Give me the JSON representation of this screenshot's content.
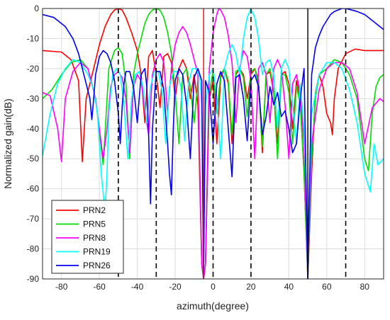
{
  "chart_data": {
    "type": "line",
    "title": "",
    "xlabel": "azimuth(degree)",
    "ylabel": "Normalized gain(dB)",
    "xlim": [
      -90,
      90
    ],
    "ylim": [
      -90,
      0
    ],
    "xticks": [
      -80,
      -60,
      -40,
      -20,
      0,
      20,
      40,
      60,
      80
    ],
    "yticks": [
      0,
      -10,
      -20,
      -30,
      -40,
      -50,
      -60,
      -70,
      -80,
      -90
    ],
    "xtick_labels": [
      "-80",
      "-60",
      "-40",
      "-20",
      "0",
      "20",
      "40",
      "60",
      "80"
    ],
    "ytick_labels": [
      "0",
      "-10",
      "-20",
      "-30",
      "-40",
      "-50",
      "-60",
      "-70",
      "-80",
      "-90"
    ],
    "grid": true,
    "legend_position": "bottom-left",
    "reference_lines": {
      "dashed_x": [
        -50,
        -30,
        0,
        20,
        70
      ],
      "solid_red_x": -5,
      "solid_black_x": 50
    },
    "series": [
      {
        "name": "PRN2",
        "color": "#ff0000",
        "main_beam_deg": -50,
        "x": [
          -90,
          -80,
          -75,
          -71,
          -69,
          -67,
          -63,
          -60,
          -57,
          -54,
          -52,
          -50,
          -48,
          -46,
          -43,
          -40,
          -38,
          -36,
          -34,
          -32,
          -30,
          -28,
          -26,
          -24,
          -22,
          -20,
          -18,
          -16,
          -14,
          -12,
          -10,
          -8,
          -6,
          -5,
          -4,
          -2,
          0,
          2,
          4,
          6,
          8,
          10,
          12,
          14,
          16,
          18,
          20,
          22,
          24,
          26,
          28,
          30,
          32,
          34,
          36,
          38,
          40,
          42,
          44,
          46,
          48,
          50,
          52,
          54,
          56,
          58,
          60,
          62,
          63,
          64,
          66,
          70,
          75,
          80,
          85,
          90
        ],
        "y": [
          -14,
          -14.5,
          -17,
          -24,
          -51,
          -30,
          -20,
          -12,
          -6,
          -2,
          -0.5,
          0,
          -0.5,
          -3,
          -8,
          -14,
          -22,
          -38,
          -16,
          -14,
          -22,
          -33,
          -16,
          -15,
          -18,
          -30,
          -20,
          -17,
          -20,
          -30,
          -22,
          -32,
          -85,
          -90,
          -85,
          -30,
          -24,
          -45,
          -23,
          -20,
          -25,
          -45,
          -22,
          -20,
          -22,
          -30,
          -22,
          -20,
          -24,
          -48,
          -22,
          -21,
          -28,
          -45,
          -22,
          -21,
          -25,
          -40,
          -24,
          -30,
          -55,
          -90,
          -55,
          -28,
          -22,
          -26,
          -35,
          -38,
          -42,
          -30,
          -20,
          -15,
          -13.5,
          -14,
          -14,
          -14
        ]
      },
      {
        "name": "PRN5",
        "color": "#00dd00",
        "main_beam_deg": -30,
        "x": [
          -90,
          -85,
          -80,
          -75,
          -70,
          -66,
          -62,
          -58,
          -55,
          -52,
          -50,
          -48,
          -46,
          -44,
          -42,
          -40,
          -38,
          -36,
          -34,
          -32,
          -30,
          -28,
          -26,
          -24,
          -22,
          -20,
          -18,
          -16,
          -14,
          -12,
          -10,
          -8,
          -6,
          -5,
          -4,
          -2,
          0,
          2,
          4,
          6,
          8,
          10,
          12,
          14,
          16,
          18,
          20,
          22,
          24,
          26,
          28,
          30,
          32,
          34,
          36,
          38,
          40,
          42,
          44,
          46,
          48,
          50,
          52,
          54,
          56,
          60,
          64,
          68,
          72,
          76,
          80,
          82,
          84,
          86,
          88,
          90
        ],
        "y": [
          -30,
          -27,
          -22,
          -18,
          -17,
          -20,
          -30,
          -52,
          -20,
          -14,
          -13,
          -15,
          -25,
          -50,
          -22,
          -15,
          -10,
          -5,
          -2,
          -0.5,
          0,
          -0.5,
          -3,
          -8,
          -15,
          -28,
          -45,
          -22,
          -20,
          -26,
          -38,
          -24,
          -85,
          -90,
          -85,
          -28,
          -21,
          -35,
          -22,
          -20,
          -24,
          -42,
          -21,
          -20,
          -23,
          -36,
          -21,
          -20,
          -25,
          -46,
          -22,
          -20,
          -27,
          -50,
          -22,
          -22,
          -28,
          -45,
          -26,
          -32,
          -55,
          -90,
          -50,
          -30,
          -22,
          -20,
          -17,
          -18,
          -22,
          -30,
          -50,
          -54,
          -35,
          -26,
          -23,
          -22
        ]
      },
      {
        "name": "PRN8",
        "color": "#ff00ff",
        "main_beam_deg": 3,
        "x": [
          -90,
          -86,
          -82,
          -80,
          -78,
          -74,
          -70,
          -66,
          -62,
          -58,
          -56,
          -54,
          -52,
          -50,
          -48,
          -46,
          -44,
          -42,
          -40,
          -38,
          -36,
          -34,
          -32,
          -30,
          -28,
          -26,
          -24,
          -22,
          -20,
          -18,
          -16,
          -14,
          -12,
          -10,
          -8,
          -6,
          -5,
          -4,
          -2,
          0,
          2,
          3,
          4,
          6,
          8,
          10,
          12,
          14,
          16,
          18,
          20,
          22,
          24,
          26,
          28,
          30,
          32,
          34,
          36,
          38,
          40,
          42,
          44,
          46,
          48,
          50,
          52,
          56,
          60,
          64,
          68,
          72,
          76,
          80,
          84,
          88,
          90
        ],
        "y": [
          -28,
          -29,
          -40,
          -51,
          -30,
          -21,
          -18,
          -20,
          -30,
          -50,
          -40,
          -26,
          -22,
          -21,
          -23,
          -30,
          -48,
          -26,
          -22,
          -24,
          -34,
          -42,
          -22,
          -17,
          -15,
          -18,
          -35,
          -20,
          -12,
          -8,
          -6,
          -8,
          -12,
          -17,
          -22,
          -85,
          -90,
          -85,
          -20,
          -8,
          -2,
          0,
          -0.5,
          -3,
          -9,
          -18,
          -38,
          -20,
          -14,
          -16,
          -24,
          -50,
          -20,
          -18,
          -22,
          -38,
          -20,
          -17,
          -20,
          -32,
          -50,
          -25,
          -22,
          -28,
          -45,
          -90,
          -45,
          -27,
          -20,
          -18,
          -18,
          -20,
          -28,
          -45,
          -33,
          -30,
          -31
        ]
      },
      {
        "name": "PRN19",
        "color": "#00ffff",
        "main_beam_deg": 20,
        "x": [
          -90,
          -86,
          -82,
          -78,
          -74,
          -70,
          -66,
          -63,
          -61,
          -59,
          -57,
          -56,
          -55,
          -53,
          -51,
          -49,
          -47,
          -45,
          -43,
          -41,
          -39,
          -37,
          -35,
          -33,
          -31,
          -29,
          -27,
          -25,
          -23,
          -21,
          -19,
          -17,
          -15,
          -13,
          -11,
          -9,
          -7,
          -6,
          -5,
          -4,
          -2,
          0,
          2,
          4,
          6,
          8,
          10,
          12,
          14,
          16,
          18,
          20,
          22,
          24,
          26,
          28,
          30,
          32,
          34,
          36,
          38,
          40,
          42,
          44,
          46,
          48,
          49,
          50,
          52,
          56,
          60,
          64,
          68,
          72,
          76,
          80,
          83,
          85,
          87,
          90
        ],
        "y": [
          -49,
          -35,
          -25,
          -20,
          -17,
          -18,
          -22,
          -27,
          -35,
          -55,
          -68,
          -55,
          -35,
          -22,
          -20,
          -22,
          -32,
          -50,
          -30,
          -22,
          -21,
          -26,
          -38,
          -26,
          -21,
          -21,
          -27,
          -45,
          -26,
          -21,
          -21,
          -26,
          -44,
          -25,
          -20,
          -20,
          -23,
          -32,
          -90,
          -32,
          -22,
          -20,
          -30,
          -50,
          -20,
          -15,
          -12,
          -15,
          -22,
          -10,
          -3,
          0,
          -3,
          -10,
          -22,
          -18,
          -17,
          -22,
          -40,
          -20,
          -17,
          -20,
          -32,
          -45,
          -25,
          -40,
          -58,
          -90,
          -35,
          -22,
          -18,
          -18,
          -20,
          -27,
          -38,
          -55,
          -61,
          -45,
          -52,
          -50
        ]
      },
      {
        "name": "PRN26",
        "color": "#0000ee",
        "main_beam_deg": 70,
        "x": [
          -90,
          -84,
          -78,
          -74,
          -71,
          -69,
          -67,
          -65,
          -64,
          -63,
          -62,
          -60,
          -58,
          -56,
          -54,
          -52,
          -50,
          -49,
          -48,
          -47,
          -46,
          -44,
          -42,
          -40,
          -38,
          -36,
          -35,
          -34,
          -33,
          -32,
          -30,
          -28,
          -26,
          -24,
          -23,
          -22,
          -21,
          -20,
          -18,
          -16,
          -14,
          -12,
          -10,
          -8,
          -6,
          -5,
          -4,
          -2,
          0,
          2,
          4,
          6,
          8,
          10,
          12,
          14,
          16,
          18,
          20,
          22,
          24,
          26,
          28,
          30,
          32,
          34,
          36,
          38,
          40,
          42,
          44,
          46,
          48,
          50,
          52,
          54,
          56,
          58,
          60,
          62,
          64,
          66,
          68,
          70,
          72,
          76,
          80,
          84,
          88,
          90
        ],
        "y": [
          -2,
          -3,
          -6,
          -10,
          -15,
          -20,
          -25,
          -30,
          -37,
          -30,
          -22,
          -16,
          -14,
          -15,
          -18,
          -24,
          -35,
          -45,
          -33,
          -25,
          -21,
          -21,
          -26,
          -38,
          -22,
          -20,
          -26,
          -42,
          -65,
          -40,
          -21,
          -21,
          -27,
          -45,
          -55,
          -62,
          -40,
          -24,
          -20,
          -22,
          -32,
          -50,
          -23,
          -20,
          -24,
          -90,
          -24,
          -28,
          -45,
          -25,
          -21,
          -24,
          -40,
          -56,
          -23,
          -22,
          -30,
          -44,
          -24,
          -22,
          -26,
          -42,
          -36,
          -26,
          -32,
          -28,
          -36,
          -34,
          -40,
          -48,
          -45,
          -30,
          -20,
          -90,
          -22,
          -13,
          -9,
          -6,
          -4,
          -2,
          -1,
          -0.5,
          0,
          0,
          -0.3,
          -1,
          -2,
          -4,
          -6,
          -7
        ]
      }
    ]
  }
}
